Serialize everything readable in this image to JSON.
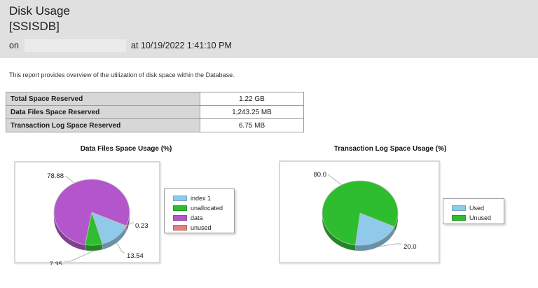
{
  "header": {
    "title": "Disk Usage",
    "database": "[SSISDB]",
    "on_label": "on",
    "server_name": "",
    "datetime": "at 10/19/2022 1:41:10 PM"
  },
  "description": "This report provides overview of the utilization of disk space within the Database.",
  "summary_table": {
    "rows": [
      {
        "label": "Total Space Reserved",
        "value": "1.22 GB"
      },
      {
        "label": "Data Files Space Reserved",
        "value": "1,243.25 MB"
      },
      {
        "label": "Transaction Log Space Reserved",
        "value": "6.75 MB"
      }
    ]
  },
  "chart_data": [
    {
      "type": "pie",
      "title": "Data Files Space Usage (%)",
      "legend_position": "right",
      "slices": [
        {
          "label": "index 1",
          "value": 13.54,
          "display": "13.54",
          "color": "#8FCAEA"
        },
        {
          "label": "unallocated",
          "value": 7.35,
          "display": "7.35",
          "color": "#2EBD2E"
        },
        {
          "label": "data",
          "value": 78.88,
          "display": "78.88",
          "color": "#B456CB"
        },
        {
          "label": "unused",
          "value": 0.23,
          "display": "0.23",
          "color": "#E5807D"
        }
      ]
    },
    {
      "type": "pie",
      "title": "Transaction Log Space Usage (%)",
      "legend_position": "right",
      "slices": [
        {
          "label": "Used",
          "value": 20.0,
          "display": "20.0",
          "color": "#8FCAEA"
        },
        {
          "label": "Unused",
          "value": 80.0,
          "display": "80.0",
          "color": "#2EBD2E"
        }
      ]
    }
  ]
}
